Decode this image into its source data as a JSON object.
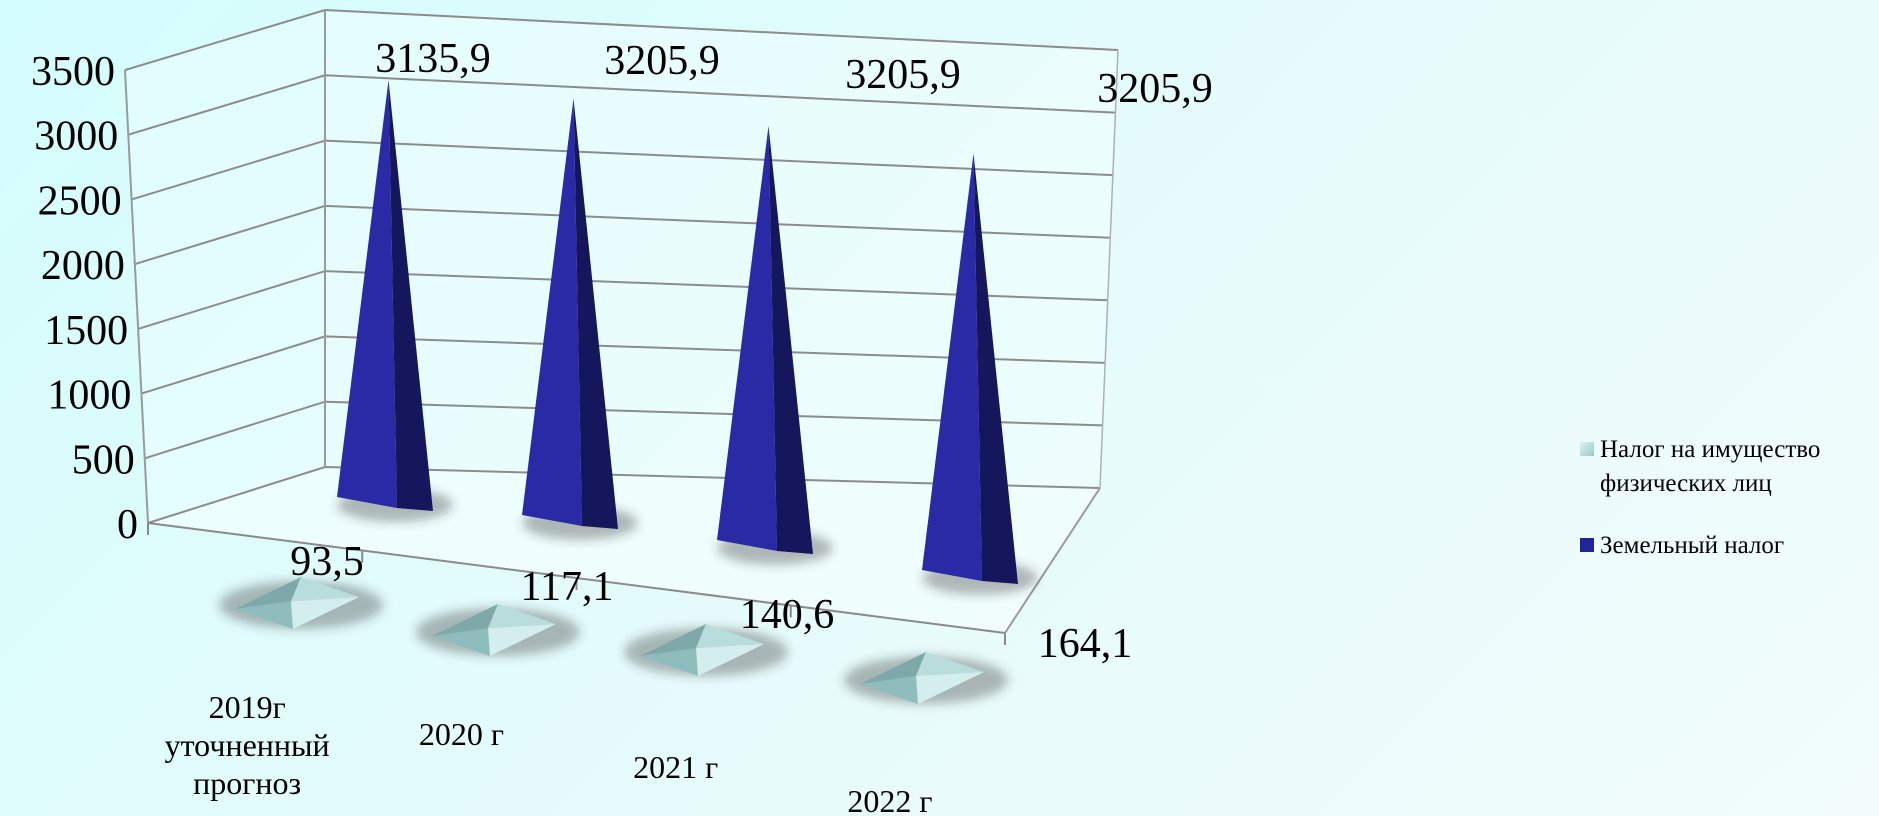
{
  "chart_data": {
    "type": "bar",
    "variant": "3d-pyramid",
    "categories": [
      [
        "2019г",
        "уточненный",
        "прогноз"
      ],
      [
        "2020 г"
      ],
      [
        "2021 г"
      ],
      [
        "2022 г"
      ]
    ],
    "series": [
      {
        "name": "Налог на имущество физических лиц",
        "legend_lines": [
          "Налог на имущество",
          "физических лиц"
        ],
        "values": [
          93.5,
          117.1,
          140.6,
          164.1
        ],
        "labels": [
          "93,5",
          "117,1",
          "140,6",
          "164,1"
        ],
        "color": "#a8d4d4"
      },
      {
        "name": "Земельный налог",
        "legend_lines": [
          "Земельный налог"
        ],
        "values": [
          3135.9,
          3205.9,
          3205.9,
          3205.9
        ],
        "labels": [
          "3135,9",
          "3205,9",
          "3205,9",
          "3205,9"
        ],
        "color": "#24249a"
      }
    ],
    "yticks": [
      "0",
      "500",
      "1000",
      "1500",
      "2000",
      "2500",
      "3000",
      "3500"
    ],
    "ylim": [
      0,
      3500
    ],
    "grid": true,
    "legend_position": "right"
  }
}
